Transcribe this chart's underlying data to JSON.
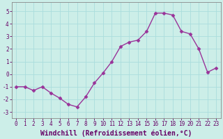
{
  "x": [
    0,
    1,
    2,
    3,
    4,
    5,
    6,
    7,
    8,
    9,
    10,
    11,
    12,
    13,
    14,
    15,
    16,
    17,
    18,
    19,
    20,
    21,
    22,
    23
  ],
  "y": [
    -1,
    -1,
    -1.3,
    -1,
    -1.5,
    -1.9,
    -2.4,
    -2.6,
    -1.8,
    -0.7,
    0.1,
    1.0,
    2.2,
    2.55,
    2.7,
    3.4,
    4.85,
    4.85,
    4.7,
    3.4,
    3.2,
    2.0,
    0.15,
    0.5
  ],
  "line_color": "#993399",
  "marker": "D",
  "marker_size": 2.5,
  "linewidth": 1.0,
  "xlabel": "Windchill (Refroidissement éolien,°C)",
  "xlabel_fontsize": 7,
  "xlim": [
    -0.5,
    23.5
  ],
  "ylim": [
    -3.5,
    5.7
  ],
  "yticks": [
    -3,
    -2,
    -1,
    0,
    1,
    2,
    3,
    4,
    5
  ],
  "xticks": [
    0,
    1,
    2,
    3,
    4,
    5,
    6,
    7,
    8,
    9,
    10,
    11,
    12,
    13,
    14,
    15,
    16,
    17,
    18,
    19,
    20,
    21,
    22,
    23
  ],
  "tick_fontsize": 5.5,
  "bg_color": "#cceee8",
  "grid_color": "#aadddd",
  "text_color": "#660066"
}
